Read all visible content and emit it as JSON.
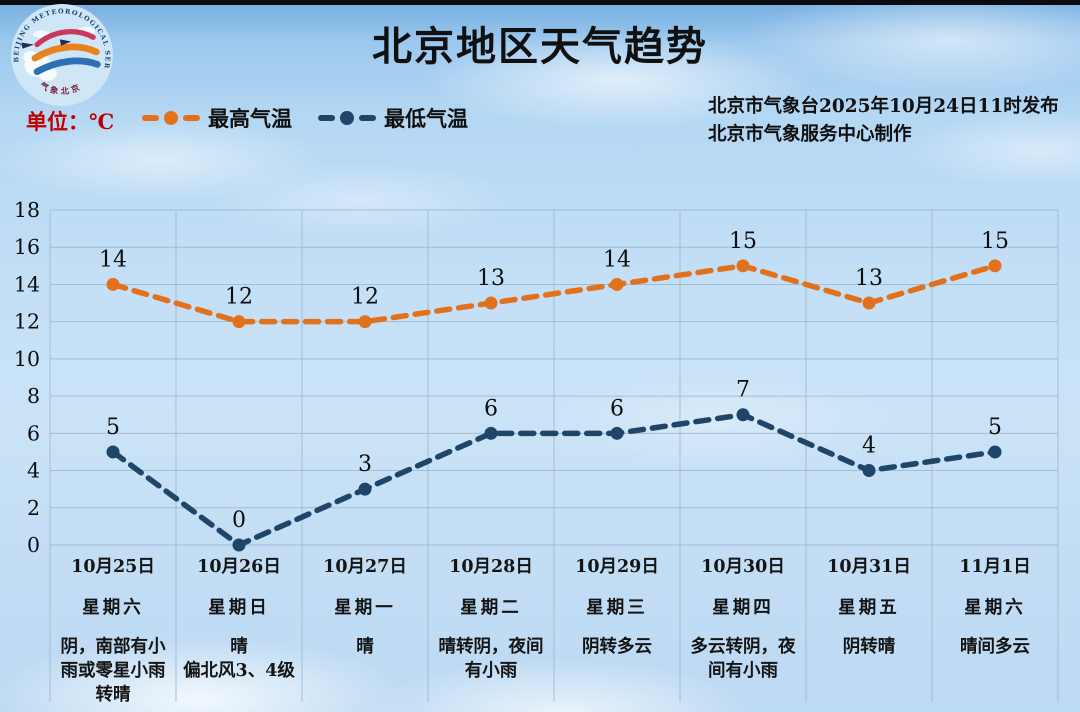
{
  "header": {
    "title": "北京地区天气趋势",
    "unit_label": "单位：℃",
    "publisher_line1": "北京市气象台2025年10月24日11时发布",
    "publisher_line2": "北京市气象服务中心制作",
    "logo_text_top": "BEIJING METEOROLOGICAL SERVICE",
    "logo_text_bottom": "气象北京"
  },
  "legend": {
    "items": [
      {
        "label": "最高气温",
        "color": "#E2711D"
      },
      {
        "label": "最低气温",
        "color": "#1F4568"
      }
    ]
  },
  "colors": {
    "high_line": "#E2711D",
    "low_line": "#1F4568",
    "grid": "#9FB6CA",
    "unit_text": "#C00000",
    "text": "#101010"
  },
  "chart_data": {
    "type": "line",
    "line_style": "dashed",
    "grid": true,
    "legend_position": "top-left",
    "title": "北京地区天气趋势",
    "xlabel": "",
    "ylabel": "℃",
    "ylim": [
      0,
      18
    ],
    "ytick_step": 2,
    "yticks": [
      0,
      2,
      4,
      6,
      8,
      10,
      12,
      14,
      16,
      18
    ],
    "categories": [
      {
        "date": "10月25日",
        "weekday": "星期六",
        "weather": "阴，南部有小雨或零星小雨转晴"
      },
      {
        "date": "10月26日",
        "weekday": "星期日",
        "weather": "晴\n偏北风3、4级"
      },
      {
        "date": "10月27日",
        "weekday": "星期一",
        "weather": "晴"
      },
      {
        "date": "10月28日",
        "weekday": "星期二",
        "weather": "晴转阴，夜间有小雨"
      },
      {
        "date": "10月29日",
        "weekday": "星期三",
        "weather": "阴转多云"
      },
      {
        "date": "10月30日",
        "weekday": "星期四",
        "weather": "多云转阴，夜间有小雨"
      },
      {
        "date": "10月31日",
        "weekday": "星期五",
        "weather": "阴转晴"
      },
      {
        "date": "11月1日",
        "weekday": "星期六",
        "weather": "晴间多云"
      }
    ],
    "series": [
      {
        "name": "最高气温",
        "color": "#E2711D",
        "values": [
          14,
          12,
          12,
          13,
          14,
          15,
          13,
          15
        ]
      },
      {
        "name": "最低气温",
        "color": "#1F4568",
        "values": [
          5,
          0,
          3,
          6,
          6,
          7,
          4,
          5
        ]
      }
    ]
  }
}
